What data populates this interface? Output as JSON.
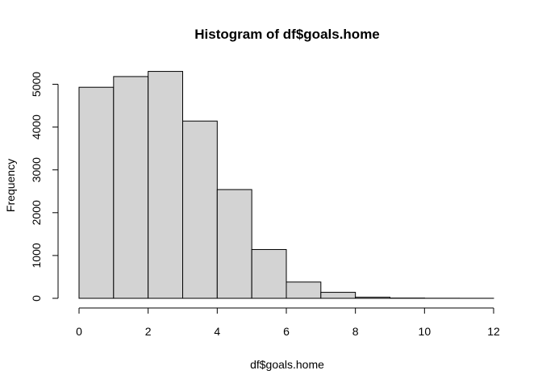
{
  "chart_data": {
    "type": "bar",
    "subtype": "histogram",
    "title": "Histogram of df$goals.home",
    "xlabel": "df$goals.home",
    "ylabel": "Frequency",
    "bins": [
      {
        "from": 0,
        "to": 1,
        "count": 4930
      },
      {
        "from": 1,
        "to": 2,
        "count": 5180
      },
      {
        "from": 2,
        "to": 3,
        "count": 5300
      },
      {
        "from": 3,
        "to": 4,
        "count": 4140
      },
      {
        "from": 4,
        "to": 5,
        "count": 2540
      },
      {
        "from": 5,
        "to": 6,
        "count": 1140
      },
      {
        "from": 6,
        "to": 7,
        "count": 380
      },
      {
        "from": 7,
        "to": 8,
        "count": 140
      },
      {
        "from": 8,
        "to": 9,
        "count": 25
      },
      {
        "from": 9,
        "to": 10,
        "count": 6
      },
      {
        "from": 10,
        "to": 11,
        "count": 2
      },
      {
        "from": 11,
        "to": 12,
        "count": 1
      }
    ],
    "xlim": [
      0,
      12
    ],
    "ylim": [
      0,
      5300
    ],
    "xticks": [
      "0",
      "2",
      "4",
      "6",
      "8",
      "10",
      "12"
    ],
    "yticks": [
      "0",
      "1000",
      "2000",
      "3000",
      "4000",
      "5000"
    ],
    "bar_fill": "#d3d3d3",
    "bar_stroke": "#000000",
    "grid": false,
    "legend": "none"
  }
}
